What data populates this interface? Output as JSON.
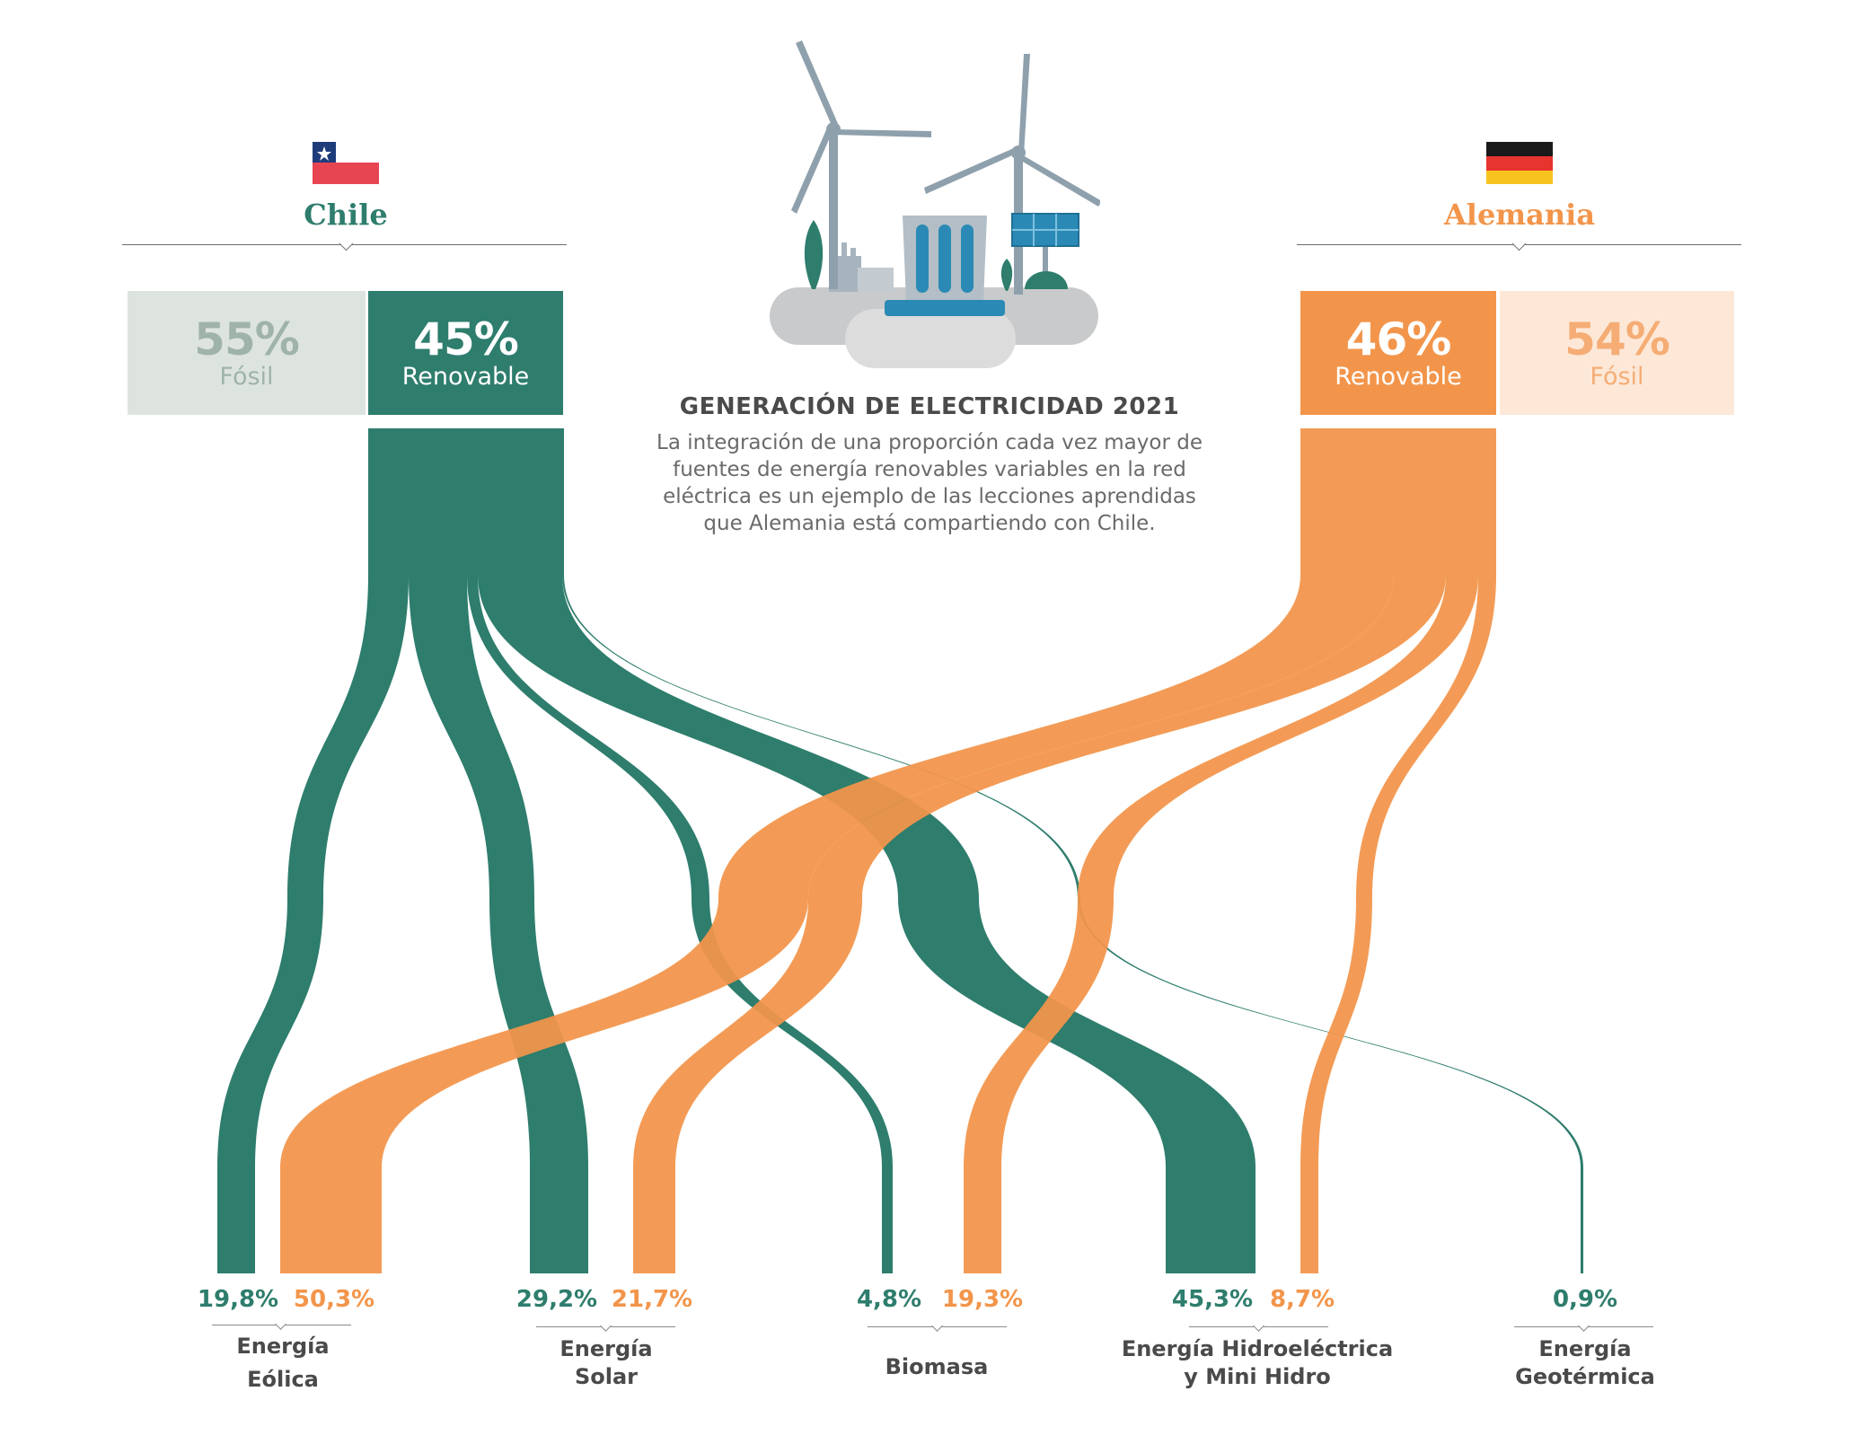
{
  "colors": {
    "chile": "#2e7d6d",
    "alemania": "#f2954b",
    "chile_fossil_bg": "#dde4e0",
    "chile_fossil_text": "#9fb3ab",
    "alemania_fossil_bg": "#fde8d8",
    "alemania_fossil_text": "#f5ad75",
    "text_dark": "#4a4a4a",
    "text_mid": "#6a6a6a"
  },
  "header": {
    "title": "GENERACIÓN DE ELECTRICIDAD 2021",
    "description": [
      "La integración de una proporción cada vez mayor de",
      "fuentes de energía renovables variables en la red",
      "eléctrica es un ejemplo de las lecciones aprendidas",
      "que Alemania está compartiendo con Chile."
    ],
    "illustration_icon": "wind-turbines-power-plant-icon"
  },
  "chile": {
    "name": "Chile",
    "flag_icon": "chile-flag-icon",
    "fossil": {
      "value": "55%",
      "label": "Fósil"
    },
    "renewable": {
      "value": "45%",
      "label": "Renovable"
    }
  },
  "alemania": {
    "name": "Alemania",
    "flag_icon": "germany-flag-icon",
    "fossil": {
      "value": "54%",
      "label": "Fósil"
    },
    "renewable": {
      "value": "46%",
      "label": "Renovable"
    }
  },
  "categories": [
    {
      "label": [
        "Energía",
        "Eólica"
      ],
      "chile": "19,8%",
      "alemania": "50,3%",
      "chile_share": 19.8,
      "alemania_share": 50.3
    },
    {
      "label": [
        "Energía",
        "Solar"
      ],
      "chile": "29,2%",
      "alemania": "21,7%",
      "chile_share": 29.2,
      "alemania_share": 21.7
    },
    {
      "label": [
        "Biomasa"
      ],
      "chile": "4,8%",
      "alemania": "19,3%",
      "chile_share": 4.8,
      "alemania_share": 19.3
    },
    {
      "label": [
        "Energía Hidroeléctrica",
        "y Mini Hidro"
      ],
      "chile": "45,3%",
      "alemania": "8,7%",
      "chile_share": 45.3,
      "alemania_share": 8.7
    },
    {
      "label": [
        "Energía",
        "Geotérmica"
      ],
      "chile": "0,9%",
      "alemania": null,
      "chile_share": 0.9,
      "alemania_share": 0
    }
  ]
}
